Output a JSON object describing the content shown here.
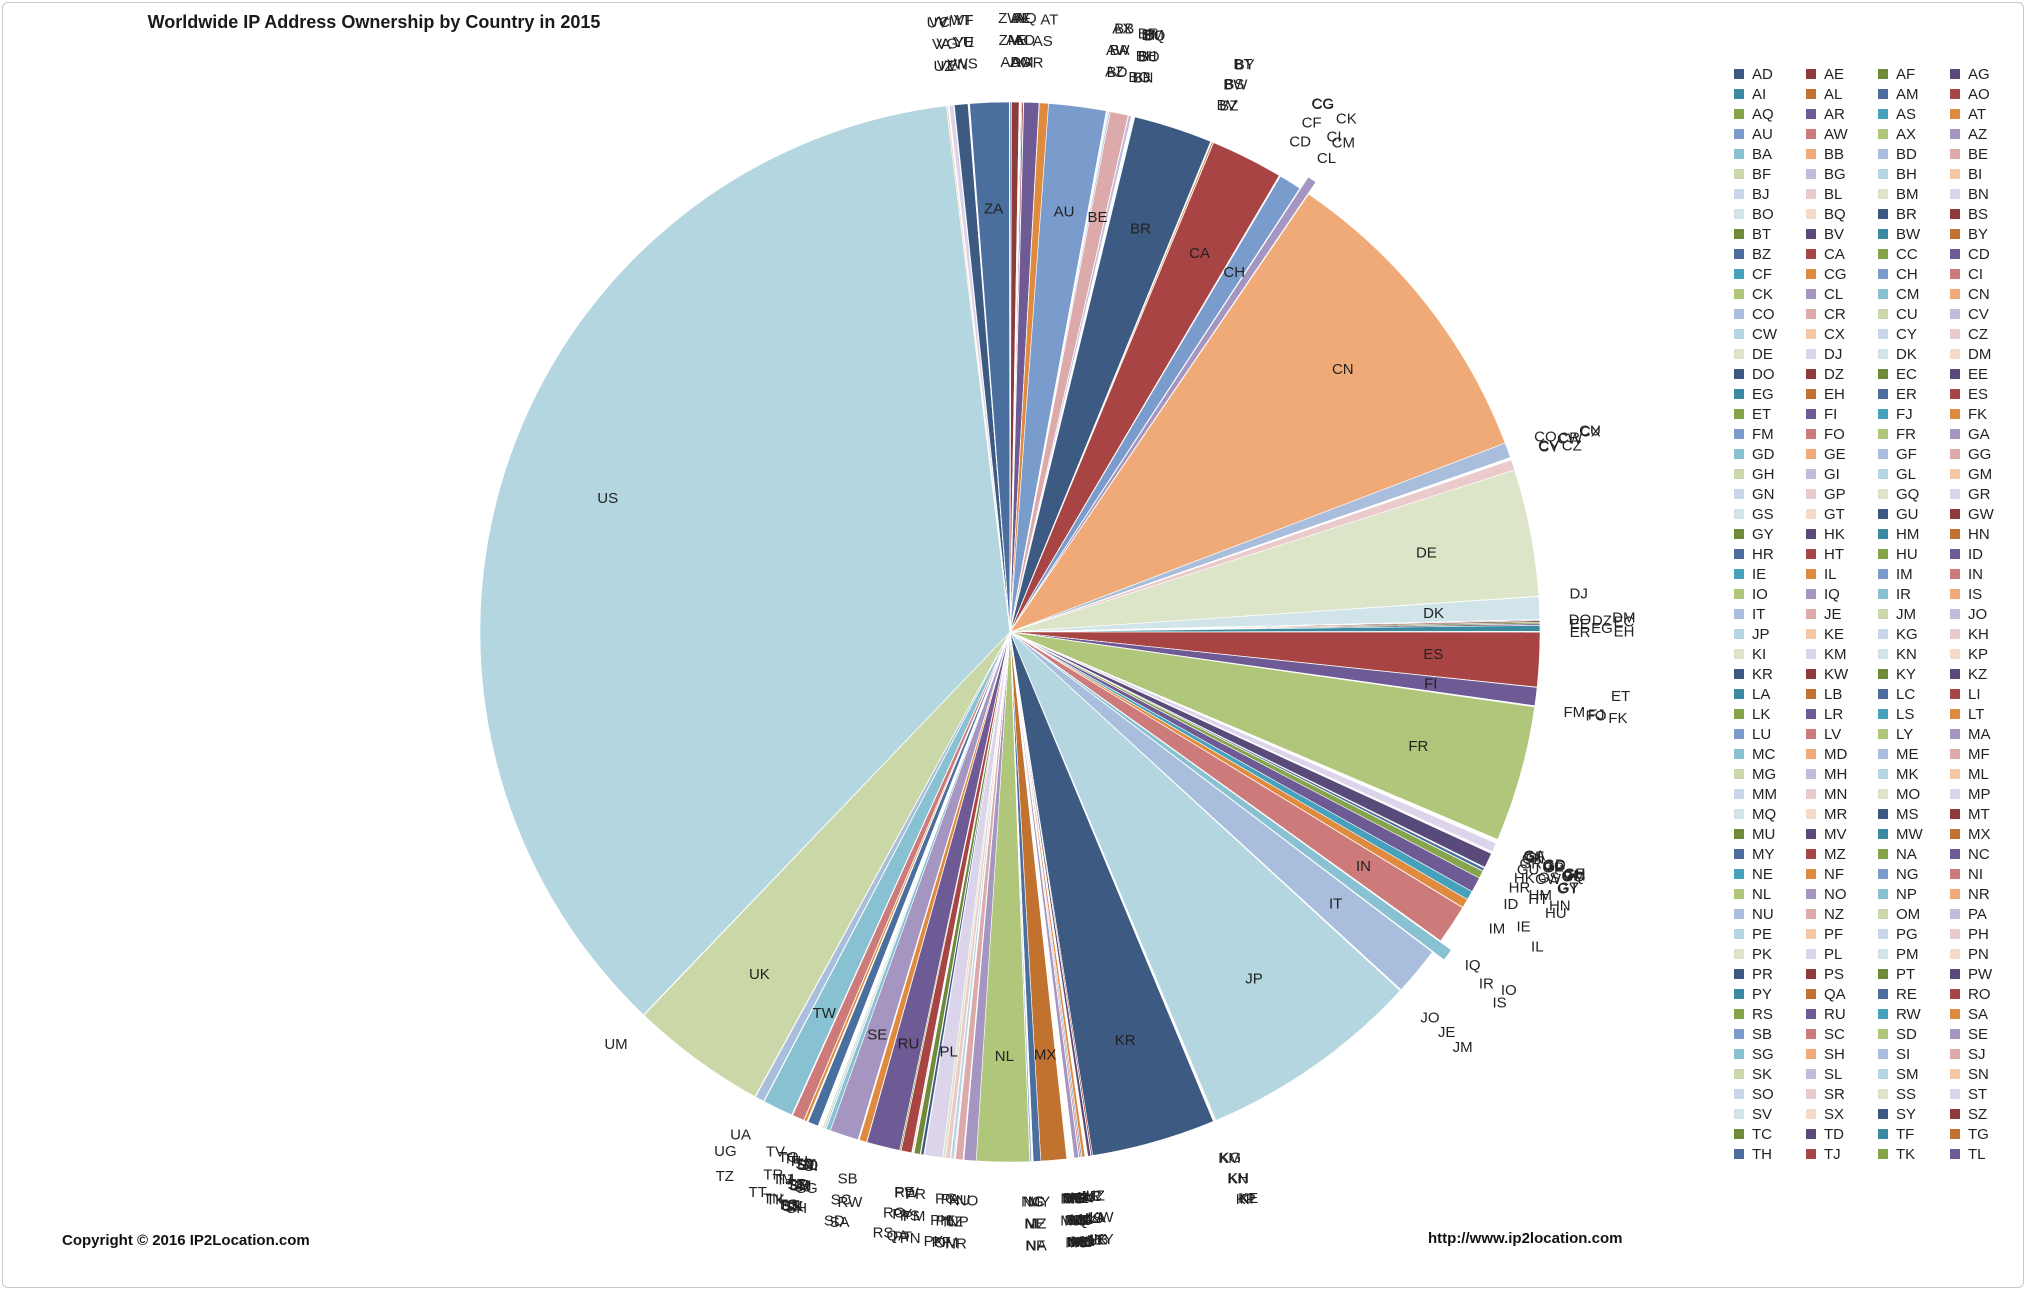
{
  "title": "Worldwide IP Address Ownership by Country in 2015",
  "copyright": "Copyright © 2016 IP2Location.com",
  "url": "http://www.ip2location.com",
  "chart_data": {
    "type": "pie",
    "start_angle_deg": 0,
    "direction": "clockwise",
    "slices": [
      {
        "label": "AD",
        "value": 0.05
      },
      {
        "label": "AE",
        "value": 0.25
      },
      {
        "label": "AF",
        "value": 0.02
      },
      {
        "label": "AG",
        "value": 0.01
      },
      {
        "label": "AI",
        "value": 0.01
      },
      {
        "label": "AL",
        "value": 0.02
      },
      {
        "label": "AM",
        "value": 0.03
      },
      {
        "label": "AO",
        "value": 0.05
      },
      {
        "label": "AQ",
        "value": 0.01
      },
      {
        "label": "AR",
        "value": 0.5
      },
      {
        "label": "AS",
        "value": 0.01
      },
      {
        "label": "AT",
        "value": 0.3
      },
      {
        "label": "AU",
        "value": 1.9
      },
      {
        "label": "AW",
        "value": 0.01
      },
      {
        "label": "AX",
        "value": 0.01
      },
      {
        "label": "AZ",
        "value": 0.02
      },
      {
        "label": "BA",
        "value": 0.03
      },
      {
        "label": "BB",
        "value": 0.01
      },
      {
        "label": "BD",
        "value": 0.05
      },
      {
        "label": "BE",
        "value": 0.6
      },
      {
        "label": "BF",
        "value": 0.01
      },
      {
        "label": "BG",
        "value": 0.1
      },
      {
        "label": "BH",
        "value": 0.02
      },
      {
        "label": "BI",
        "value": 0.01
      },
      {
        "label": "BJ",
        "value": 0.01
      },
      {
        "label": "BL",
        "value": 0.01
      },
      {
        "label": "BM",
        "value": 0.01
      },
      {
        "label": "BN",
        "value": 0.01
      },
      {
        "label": "BO",
        "value": 0.03
      },
      {
        "label": "BQ",
        "value": 0.01
      },
      {
        "label": "BR",
        "value": 2.6
      },
      {
        "label": "BS",
        "value": 0.01
      },
      {
        "label": "BT",
        "value": 0.01
      },
      {
        "label": "BV",
        "value": 0.01
      },
      {
        "label": "BW",
        "value": 0.01
      },
      {
        "label": "BY",
        "value": 0.05
      },
      {
        "label": "BZ",
        "value": 0.01
      },
      {
        "label": "CA",
        "value": 2.4
      },
      {
        "label": "CC",
        "value": 0.01
      },
      {
        "label": "CD",
        "value": 0.01
      },
      {
        "label": "CF",
        "value": 0.01
      },
      {
        "label": "CG",
        "value": 0.01
      },
      {
        "label": "CH",
        "value": 0.75
      },
      {
        "label": "CI",
        "value": 0.01
      },
      {
        "label": "CK",
        "value": 0.01
      },
      {
        "label": "CL",
        "value": 0.3
      },
      {
        "label": "CM",
        "value": 0.02
      },
      {
        "label": "CN",
        "value": 10.5
      },
      {
        "label": "CO",
        "value": 0.5
      },
      {
        "label": "CR",
        "value": 0.02
      },
      {
        "label": "CU",
        "value": 0.01
      },
      {
        "label": "CV",
        "value": 0.01
      },
      {
        "label": "CW",
        "value": 0.01
      },
      {
        "label": "CX",
        "value": 0.01
      },
      {
        "label": "CY",
        "value": 0.02
      },
      {
        "label": "CZ",
        "value": 0.35
      },
      {
        "label": "DE",
        "value": 4.2
      },
      {
        "label": "DJ",
        "value": 0.01
      },
      {
        "label": "DK",
        "value": 0.75
      },
      {
        "label": "DM",
        "value": 0.01
      },
      {
        "label": "DO",
        "value": 0.03
      },
      {
        "label": "DZ",
        "value": 0.05
      },
      {
        "label": "EC",
        "value": 0.05
      },
      {
        "label": "EE",
        "value": 0.05
      },
      {
        "label": "EG",
        "value": 0.2
      },
      {
        "label": "EH",
        "value": 0.01
      },
      {
        "label": "ER",
        "value": 0.01
      },
      {
        "label": "ES",
        "value": 1.8
      },
      {
        "label": "ET",
        "value": 0.01
      },
      {
        "label": "FI",
        "value": 0.6
      },
      {
        "label": "FJ",
        "value": 0.01
      },
      {
        "label": "FK",
        "value": 0.01
      },
      {
        "label": "FM",
        "value": 0.01
      },
      {
        "label": "FO",
        "value": 0.01
      },
      {
        "label": "FR",
        "value": 4.5
      },
      {
        "label": "GA",
        "value": 0.01
      },
      {
        "label": "GD",
        "value": 0.01
      },
      {
        "label": "GE",
        "value": 0.02
      },
      {
        "label": "GF",
        "value": 0.01
      },
      {
        "label": "GG",
        "value": 0.01
      },
      {
        "label": "GH",
        "value": 0.01
      },
      {
        "label": "GI",
        "value": 0.01
      },
      {
        "label": "GL",
        "value": 0.01
      },
      {
        "label": "GM",
        "value": 0.01
      },
      {
        "label": "GN",
        "value": 0.01
      },
      {
        "label": "GP",
        "value": 0.01
      },
      {
        "label": "GQ",
        "value": 0.01
      },
      {
        "label": "GR",
        "value": 0.3
      },
      {
        "label": "GS",
        "value": 0.01
      },
      {
        "label": "GT",
        "value": 0.03
      },
      {
        "label": "GU",
        "value": 0.01
      },
      {
        "label": "GW",
        "value": 0.01
      },
      {
        "label": "GY",
        "value": 0.01
      },
      {
        "label": "HK",
        "value": 0.5
      },
      {
        "label": "HM",
        "value": 0.01
      },
      {
        "label": "HN",
        "value": 0.02
      },
      {
        "label": "HR",
        "value": 0.1
      },
      {
        "label": "HT",
        "value": 0.01
      },
      {
        "label": "HU",
        "value": 0.25
      },
      {
        "label": "ID",
        "value": 0.5
      },
      {
        "label": "IE",
        "value": 0.3
      },
      {
        "label": "IL",
        "value": 0.3
      },
      {
        "label": "IM",
        "value": 0.01
      },
      {
        "label": "IN",
        "value": 1.3
      },
      {
        "label": "IO",
        "value": 0.01
      },
      {
        "label": "IQ",
        "value": 0.02
      },
      {
        "label": "IR",
        "value": 0.4
      },
      {
        "label": "IS",
        "value": 0.02
      },
      {
        "label": "IT",
        "value": 1.6
      },
      {
        "label": "JE",
        "value": 0.01
      },
      {
        "label": "JM",
        "value": 0.01
      },
      {
        "label": "JO",
        "value": 0.02
      },
      {
        "label": "JP",
        "value": 7.4
      },
      {
        "label": "KE",
        "value": 0.03
      },
      {
        "label": "KG",
        "value": 0.01
      },
      {
        "label": "KH",
        "value": 0.01
      },
      {
        "label": "KI",
        "value": 0.01
      },
      {
        "label": "KM",
        "value": 0.01
      },
      {
        "label": "KN",
        "value": 0.01
      },
      {
        "label": "KP",
        "value": 0.01
      },
      {
        "label": "KR",
        "value": 4.1
      },
      {
        "label": "KW",
        "value": 0.05
      },
      {
        "label": "KY",
        "value": 0.01
      },
      {
        "label": "KZ",
        "value": 0.1
      },
      {
        "label": "LA",
        "value": 0.01
      },
      {
        "label": "LB",
        "value": 0.02
      },
      {
        "label": "LC",
        "value": 0.01
      },
      {
        "label": "LI",
        "value": 0.01
      },
      {
        "label": "LK",
        "value": 0.02
      },
      {
        "label": "LR",
        "value": 0.01
      },
      {
        "label": "LS",
        "value": 0.01
      },
      {
        "label": "LT",
        "value": 0.1
      },
      {
        "label": "LU",
        "value": 0.05
      },
      {
        "label": "LV",
        "value": 0.05
      },
      {
        "label": "LY",
        "value": 0.01
      },
      {
        "label": "MA",
        "value": 0.15
      },
      {
        "label": "MC",
        "value": 0.01
      },
      {
        "label": "MD",
        "value": 0.02
      },
      {
        "label": "ME",
        "value": 0.01
      },
      {
        "label": "MF",
        "value": 0.01
      },
      {
        "label": "MG",
        "value": 0.01
      },
      {
        "label": "MH",
        "value": 0.01
      },
      {
        "label": "MK",
        "value": 0.02
      },
      {
        "label": "ML",
        "value": 0.01
      },
      {
        "label": "MM",
        "value": 0.01
      },
      {
        "label": "MN",
        "value": 0.01
      },
      {
        "label": "MO",
        "value": 0.02
      },
      {
        "label": "MP",
        "value": 0.01
      },
      {
        "label": "MQ",
        "value": 0.01
      },
      {
        "label": "MR",
        "value": 0.01
      },
      {
        "label": "MS",
        "value": 0.01
      },
      {
        "label": "MT",
        "value": 0.02
      },
      {
        "label": "MU",
        "value": 0.02
      },
      {
        "label": "MV",
        "value": 0.01
      },
      {
        "label": "MW",
        "value": 0.01
      },
      {
        "label": "MX",
        "value": 0.85
      },
      {
        "label": "MY",
        "value": 0.25
      },
      {
        "label": "MZ",
        "value": 0.01
      },
      {
        "label": "NA",
        "value": 0.01
      },
      {
        "label": "NC",
        "value": 0.01
      },
      {
        "label": "NE",
        "value": 0.01
      },
      {
        "label": "NF",
        "value": 0.01
      },
      {
        "label": "NG",
        "value": 0.05
      },
      {
        "label": "NI",
        "value": 0.01
      },
      {
        "label": "NL",
        "value": 1.75
      },
      {
        "label": "NO",
        "value": 0.4
      },
      {
        "label": "NP",
        "value": 0.01
      },
      {
        "label": "NR",
        "value": 0.01
      },
      {
        "label": "NU",
        "value": 0.01
      },
      {
        "label": "NZ",
        "value": 0.25
      },
      {
        "label": "OM",
        "value": 0.02
      },
      {
        "label": "PA",
        "value": 0.03
      },
      {
        "label": "PE",
        "value": 0.1
      },
      {
        "label": "PF",
        "value": 0.01
      },
      {
        "label": "PG",
        "value": 0.01
      },
      {
        "label": "PH",
        "value": 0.15
      },
      {
        "label": "PK",
        "value": 0.1
      },
      {
        "label": "PL",
        "value": 0.6
      },
      {
        "label": "PM",
        "value": 0.01
      },
      {
        "label": "PN",
        "value": 0.01
      },
      {
        "label": "PR",
        "value": 0.1
      },
      {
        "label": "PS",
        "value": 0.02
      },
      {
        "label": "PT",
        "value": 0.2
      },
      {
        "label": "PW",
        "value": 0.01
      },
      {
        "label": "PY",
        "value": 0.02
      },
      {
        "label": "QA",
        "value": 0.03
      },
      {
        "label": "RE",
        "value": 0.02
      },
      {
        "label": "RO",
        "value": 0.35
      },
      {
        "label": "RS",
        "value": 0.05
      },
      {
        "label": "RU",
        "value": 1.1
      },
      {
        "label": "RW",
        "value": 0.01
      },
      {
        "label": "SA",
        "value": 0.25
      },
      {
        "label": "SB",
        "value": 0.01
      },
      {
        "label": "SC",
        "value": 0.01
      },
      {
        "label": "SD",
        "value": 0.02
      },
      {
        "label": "SE",
        "value": 0.95
      },
      {
        "label": "SG",
        "value": 0.15
      },
      {
        "label": "SH",
        "value": 0.01
      },
      {
        "label": "SI",
        "value": 0.05
      },
      {
        "label": "SJ",
        "value": 0.01
      },
      {
        "label": "SK",
        "value": 0.05
      },
      {
        "label": "SL",
        "value": 0.01
      },
      {
        "label": "SM",
        "value": 0.01
      },
      {
        "label": "SN",
        "value": 0.01
      },
      {
        "label": "SO",
        "value": 0.01
      },
      {
        "label": "SR",
        "value": 0.01
      },
      {
        "label": "SS",
        "value": 0.01
      },
      {
        "label": "ST",
        "value": 0.01
      },
      {
        "label": "SV",
        "value": 0.01
      },
      {
        "label": "SX",
        "value": 0.01
      },
      {
        "label": "SY",
        "value": 0.02
      },
      {
        "label": "SZ",
        "value": 0.01
      },
      {
        "label": "TC",
        "value": 0.01
      },
      {
        "label": "TD",
        "value": 0.01
      },
      {
        "label": "TF",
        "value": 0.01
      },
      {
        "label": "TG",
        "value": 0.01
      },
      {
        "label": "TH",
        "value": 0.35
      },
      {
        "label": "TJ",
        "value": 0.01
      },
      {
        "label": "TK",
        "value": 0.01
      },
      {
        "label": "TL",
        "value": 0.01
      },
      {
        "label": "TM",
        "value": 0.01
      },
      {
        "label": "TN",
        "value": 0.1
      },
      {
        "label": "TO",
        "value": 0.01
      },
      {
        "label": "TR",
        "value": 0.4
      },
      {
        "label": "TT",
        "value": 0.02
      },
      {
        "label": "TV",
        "value": 0.01
      },
      {
        "label": "TW",
        "value": 1.0
      },
      {
        "label": "TZ",
        "value": 0.02
      },
      {
        "label": "UA",
        "value": 0.3
      },
      {
        "label": "UG",
        "value": 0.02
      },
      {
        "label": "UK",
        "value": 4.5
      },
      {
        "label": "UM",
        "value": 0.02
      },
      {
        "label": "US",
        "value": 39.0
      },
      {
        "label": "UY",
        "value": 0.05
      },
      {
        "label": "UZ",
        "value": 0.02
      },
      {
        "label": "VA",
        "value": 0.01
      },
      {
        "label": "VC",
        "value": 0.01
      },
      {
        "label": "VE",
        "value": 0.15
      },
      {
        "label": "VG",
        "value": 0.01
      },
      {
        "label": "VI",
        "value": 0.01
      },
      {
        "label": "VN",
        "value": 0.45
      },
      {
        "label": "VU",
        "value": 0.01
      },
      {
        "label": "WF",
        "value": 0.01
      },
      {
        "label": "WS",
        "value": 0.01
      },
      {
        "label": "YE",
        "value": 0.01
      },
      {
        "label": "YT",
        "value": 0.01
      },
      {
        "label": "ZA",
        "value": 1.3
      },
      {
        "label": "ZM",
        "value": 0.01
      },
      {
        "label": "ZW",
        "value": 0.01
      }
    ],
    "exploded": [
      "CL",
      "IR",
      "TG"
    ],
    "legend_entries": [
      "AD",
      "AE",
      "AF",
      "AG",
      "AI",
      "AL",
      "AM",
      "AO",
      "AQ",
      "AR",
      "AS",
      "AT",
      "AU",
      "AW",
      "AX",
      "AZ",
      "BA",
      "BB",
      "BD",
      "BE",
      "BF",
      "BG",
      "BH",
      "BI",
      "BJ",
      "BL",
      "BM",
      "BN",
      "BO",
      "BQ",
      "BR",
      "BS",
      "BT",
      "BV",
      "BW",
      "BY",
      "BZ",
      "CA",
      "CC",
      "CD",
      "CF",
      "CG",
      "CH",
      "CI",
      "CK",
      "CL",
      "CM",
      "CN",
      "CO",
      "CR",
      "CU",
      "CV",
      "CW",
      "CX",
      "CY",
      "CZ",
      "DE",
      "DJ",
      "DK",
      "DM",
      "DO",
      "DZ",
      "EC",
      "EE",
      "EG",
      "EH",
      "ER",
      "ES",
      "ET",
      "FI",
      "FJ",
      "FK",
      "FM",
      "FO",
      "FR",
      "GA",
      "GD",
      "GE",
      "GF",
      "GG",
      "GH",
      "GI",
      "GL",
      "GM",
      "GN",
      "GP",
      "GQ",
      "GR",
      "GS",
      "GT",
      "GU",
      "GW",
      "GY",
      "HK",
      "HM",
      "HN",
      "HR",
      "HT",
      "HU",
      "ID",
      "IE",
      "IL",
      "IM",
      "IN",
      "IO",
      "IQ",
      "IR",
      "IS",
      "IT",
      "JE",
      "JM",
      "JO",
      "JP",
      "KE",
      "KG",
      "KH",
      "KI",
      "KM",
      "KN",
      "KP",
      "KR",
      "KW",
      "KY",
      "KZ",
      "LA",
      "LB",
      "LC",
      "LI",
      "LK",
      "LR",
      "LS",
      "LT",
      "LU",
      "LV",
      "LY",
      "MA",
      "MC",
      "MD",
      "ME",
      "MF",
      "MG",
      "MH",
      "MK",
      "ML",
      "MM",
      "MN",
      "MO",
      "MP",
      "MQ",
      "MR",
      "MS",
      "MT",
      "MU",
      "MV",
      "MW",
      "MX",
      "MY",
      "MZ",
      "NA",
      "NC",
      "NE",
      "NF",
      "NG",
      "NI",
      "NL",
      "NO",
      "NP",
      "NR",
      "NU",
      "NZ",
      "OM",
      "PA",
      "PE",
      "PF",
      "PG",
      "PH",
      "PK",
      "PL",
      "PM",
      "PN",
      "PR",
      "PS",
      "PT",
      "PW",
      "PY",
      "QA",
      "RE",
      "RO",
      "RS",
      "RU",
      "RW",
      "SA",
      "SB",
      "SC",
      "SD",
      "SE",
      "SG",
      "SH",
      "SI",
      "SJ",
      "SK",
      "SL",
      "SM",
      "SN",
      "SO",
      "SR",
      "SS",
      "ST",
      "SV",
      "SX",
      "SY",
      "SZ",
      "TC",
      "TD",
      "TF",
      "TG",
      "TH",
      "TJ",
      "TK",
      "TL"
    ],
    "legend_placement": "right",
    "palette": [
      "#3c5a82",
      "#8e3a3a",
      "#6f8a3a",
      "#5a4a7a",
      "#3a8aa0",
      "#c0722e",
      "#4a6e9e",
      "#a84444",
      "#86a44a",
      "#6e5a94",
      "#46a2bc",
      "#e08a3e",
      "#7a9ccc",
      "#cc7a7a",
      "#b0c67a",
      "#a496c0",
      "#88c2d2",
      "#f0aa78",
      "#a8bedc",
      "#dcaaaa",
      "#cad8a8",
      "#c4badc",
      "#b4d6e0",
      "#f4c8a6",
      "#c8d8ea",
      "#eacaca",
      "#dde5c8",
      "#dcd4ea",
      "#d0e4ea",
      "#f6dcc8"
    ]
  }
}
